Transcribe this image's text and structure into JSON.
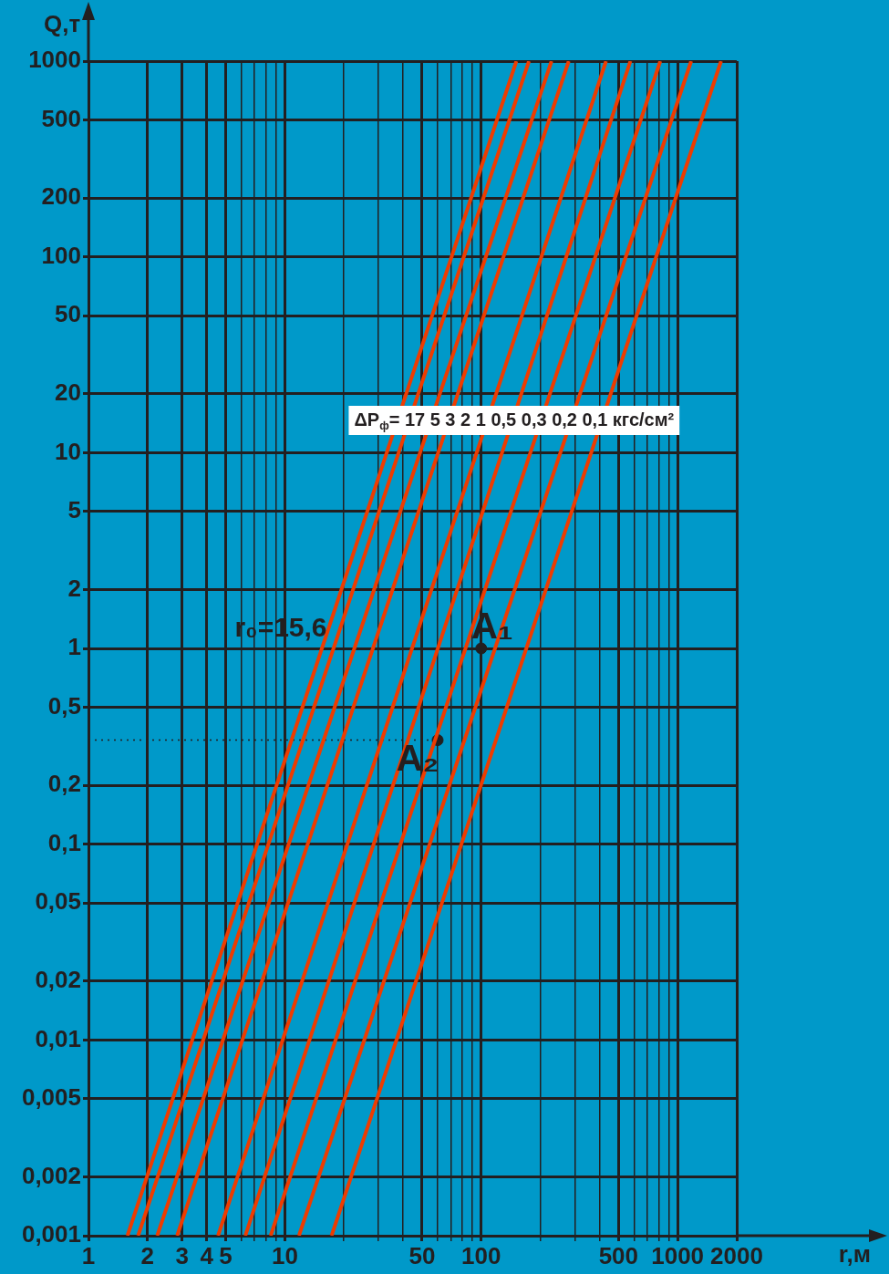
{
  "chart_data": {
    "type": "line",
    "xlabel": "r,м",
    "ylabel": "Q,т",
    "log": "xy",
    "grid": true,
    "xlim": [
      1,
      2000
    ],
    "ylim": [
      0.001,
      1000
    ],
    "xticks": [
      1,
      2,
      3,
      4,
      5,
      {
        "value": 6,
        "label": null
      },
      {
        "value": 7,
        "label": null
      },
      {
        "value": 8,
        "label": null
      },
      {
        "value": 9,
        "label": null
      },
      10,
      {
        "value": 20,
        "label": null
      },
      {
        "value": 30,
        "label": null
      },
      {
        "value": 40,
        "label": null
      },
      50,
      {
        "value": 60,
        "label": null
      },
      {
        "value": 70,
        "label": null
      },
      {
        "value": 80,
        "label": null
      },
      {
        "value": 90,
        "label": null
      },
      100,
      {
        "value": 200,
        "label": null
      },
      {
        "value": 300,
        "label": null
      },
      {
        "value": 400,
        "label": null
      },
      500,
      {
        "value": 600,
        "label": null
      },
      {
        "value": 700,
        "label": null
      },
      {
        "value": 800,
        "label": null
      },
      {
        "value": 900,
        "label": null
      },
      1000,
      2000
    ],
    "yticks": [
      {
        "value": 0.001,
        "label": "0,001"
      },
      {
        "value": 0.002,
        "label": "0,002"
      },
      {
        "value": 0.005,
        "label": "0,005"
      },
      {
        "value": 0.01,
        "label": "0,01"
      },
      {
        "value": 0.02,
        "label": "0,02"
      },
      {
        "value": 0.05,
        "label": "0,05"
      },
      {
        "value": 0.1,
        "label": "0,1"
      },
      {
        "value": 0.2,
        "label": "0,2"
      },
      {
        "value": 0.5,
        "label": "0,5"
      },
      1,
      2,
      5,
      10,
      20,
      50,
      100,
      200,
      500,
      1000
    ],
    "series": [
      {
        "color": "#ee3c00",
        "x": [
          1.58,
          151
        ],
        "values": [
          0.001,
          1000
        ]
      },
      {
        "color": "#ee3c00",
        "x": [
          1.79,
          175
        ],
        "values": [
          0.001,
          1000
        ]
      },
      {
        "color": "#ee3c00",
        "x": [
          2.24,
          228
        ],
        "values": [
          0.001,
          1000
        ]
      },
      {
        "color": "#ee3c00",
        "x": [
          2.83,
          279
        ],
        "values": [
          0.001,
          1000
        ]
      },
      {
        "color": "#ee3c00",
        "x": [
          4.57,
          432
        ],
        "values": [
          0.001,
          1000
        ]
      },
      {
        "color": "#ee3c00",
        "x": [
          6.29,
          575
        ],
        "values": [
          0.001,
          1000
        ]
      },
      {
        "color": "#ee3c00",
        "x": [
          8.47,
          816
        ],
        "values": [
          0.001,
          1000
        ]
      },
      {
        "color": "#ee3c00",
        "x": [
          11.8,
          1172
        ],
        "values": [
          0.001,
          1000
        ]
      },
      {
        "color": "#ee3c00",
        "x": [
          17.3,
          1664
        ],
        "values": [
          0.001,
          1000
        ]
      },
      {
        "color": "#231f20",
        "line_style": "dotted",
        "x": [
          1,
          60
        ],
        "values": [
          0.34,
          0.34
        ]
      },
      {
        "type": "scatter",
        "color": "#231f20",
        "marker": "circle",
        "x": [
          100,
          60
        ],
        "values": [
          1,
          0.34
        ]
      }
    ],
    "annotations": [
      {
        "text": "ΔP$_{ф}$= 17 5 3 2 1 0,5 0,3 0,2 0,1 кгс/см²",
        "x": 147,
        "y": 14.6
      },
      "r₀=15,6",
      {
        "text": "A₁",
        "x": 100,
        "y": 1
      },
      {
        "text": "A₂",
        "x": 60,
        "y": 0.34
      }
    ]
  }
}
